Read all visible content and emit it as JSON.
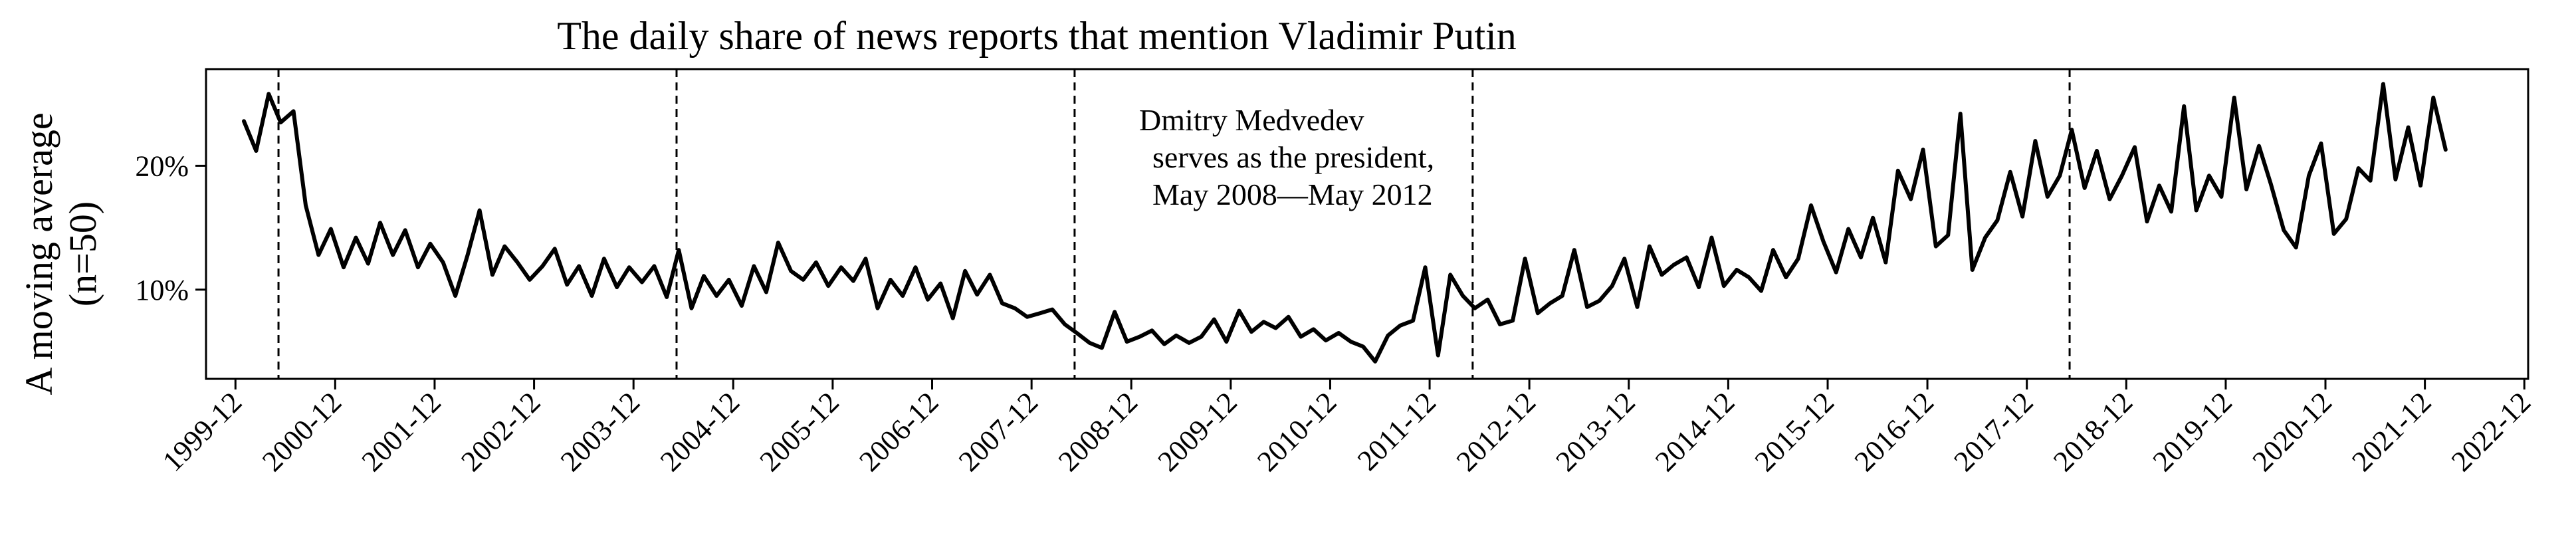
{
  "chart_data": {
    "type": "line",
    "title": "The daily share of news reports that mention Vladimir Putin",
    "xlabel": "",
    "ylabel_line1": "A moving average",
    "ylabel_line2": "(n=50)",
    "ylim": [
      0.028,
      0.278
    ],
    "xlim": [
      "1999-08-15",
      "2022-12-15"
    ],
    "x_ticks": [
      "1999-12",
      "2000-12",
      "2001-12",
      "2002-12",
      "2003-12",
      "2004-12",
      "2005-12",
      "2006-12",
      "2007-12",
      "2008-12",
      "2009-12",
      "2010-12",
      "2011-12",
      "2012-12",
      "2013-12",
      "2014-12",
      "2015-12",
      "2016-12",
      "2017-12",
      "2018-12",
      "2019-12",
      "2020-12",
      "2021-12",
      "2022-12"
    ],
    "y_ticks": [
      {
        "value": 0.1,
        "label": "10%"
      },
      {
        "value": 0.2,
        "label": "20%"
      }
    ],
    "vertical_lines": [
      "2000-05-07",
      "2004-05-07",
      "2008-05-07",
      "2012-05-07",
      "2018-05-07"
    ],
    "annotation": [
      "Dmitry Medvedev",
      "serves as the president,",
      "May 2008—May 2012"
    ],
    "grid": false,
    "series": [
      {
        "x": [
          "2000-01-01",
          "2000-02-15",
          "2000-04-01",
          "2000-05-15",
          "2000-07-01",
          "2000-08-15",
          "2000-10-01",
          "2000-11-15",
          "2001-01-01",
          "2001-02-15",
          "2001-04-01",
          "2001-05-15",
          "2001-07-01",
          "2001-08-15",
          "2001-10-01",
          "2001-11-15",
          "2002-01-01",
          "2002-02-15",
          "2002-04-01",
          "2002-05-15",
          "2002-07-01",
          "2002-08-15",
          "2002-10-01",
          "2002-11-15",
          "2003-01-01",
          "2003-02-15",
          "2003-04-01",
          "2003-05-15",
          "2003-07-01",
          "2003-08-15",
          "2003-10-01",
          "2003-11-15",
          "2004-01-01",
          "2004-02-15",
          "2004-04-01",
          "2004-05-15",
          "2004-07-01",
          "2004-08-15",
          "2004-10-01",
          "2004-11-15",
          "2005-01-01",
          "2005-02-15",
          "2005-04-01",
          "2005-05-15",
          "2005-07-01",
          "2005-08-15",
          "2005-10-01",
          "2005-11-15",
          "2006-01-01",
          "2006-02-15",
          "2006-04-01",
          "2006-05-15",
          "2006-07-01",
          "2006-08-15",
          "2006-10-01",
          "2006-11-15",
          "2007-01-01",
          "2007-02-15",
          "2007-04-01",
          "2007-05-15",
          "2007-07-01",
          "2007-08-15",
          "2007-10-01",
          "2007-11-15",
          "2008-01-01",
          "2008-02-15",
          "2008-04-01",
          "2008-05-15",
          "2008-07-01",
          "2008-08-15",
          "2008-10-01",
          "2008-11-15",
          "2009-01-01",
          "2009-02-15",
          "2009-04-01",
          "2009-05-15",
          "2009-07-01",
          "2009-08-15",
          "2009-10-01",
          "2009-11-15",
          "2010-01-01",
          "2010-02-15",
          "2010-04-01",
          "2010-05-15",
          "2010-07-01",
          "2010-08-15",
          "2010-10-01",
          "2010-11-15",
          "2011-01-01",
          "2011-02-15",
          "2011-04-01",
          "2011-05-15",
          "2011-07-01",
          "2011-08-15",
          "2011-10-01",
          "2011-11-15",
          "2012-01-01",
          "2012-02-15",
          "2012-04-01",
          "2012-05-15",
          "2012-07-01",
          "2012-08-15",
          "2012-10-01",
          "2012-11-15",
          "2013-01-01",
          "2013-02-15",
          "2013-04-01",
          "2013-05-15",
          "2013-07-01",
          "2013-08-15",
          "2013-10-01",
          "2013-11-15",
          "2014-01-01",
          "2014-02-15",
          "2014-04-01",
          "2014-05-15",
          "2014-07-01",
          "2014-08-15",
          "2014-10-01",
          "2014-11-15",
          "2015-01-01",
          "2015-02-15",
          "2015-04-01",
          "2015-05-15",
          "2015-07-01",
          "2015-08-15",
          "2015-10-01",
          "2015-11-15",
          "2016-01-01",
          "2016-02-15",
          "2016-04-01",
          "2016-05-15",
          "2016-07-01",
          "2016-08-15",
          "2016-10-01",
          "2016-11-15",
          "2017-01-01",
          "2017-02-15",
          "2017-04-01",
          "2017-05-15",
          "2017-07-01",
          "2017-08-15",
          "2017-10-01",
          "2017-11-15",
          "2018-01-01",
          "2018-02-15",
          "2018-04-01",
          "2018-05-15",
          "2018-07-01",
          "2018-08-15",
          "2018-10-01",
          "2018-11-15",
          "2019-01-01",
          "2019-02-15",
          "2019-04-01",
          "2019-05-15",
          "2019-07-01",
          "2019-08-15",
          "2019-10-01",
          "2019-11-15",
          "2020-01-01",
          "2020-02-15",
          "2020-04-01",
          "2020-05-15",
          "2020-07-01",
          "2020-08-15",
          "2020-10-01",
          "2020-11-15",
          "2021-01-01",
          "2021-02-15",
          "2021-04-01",
          "2021-05-15",
          "2021-07-01",
          "2021-08-15",
          "2021-10-01",
          "2021-11-15",
          "2022-01-01",
          "2022-02-15"
        ],
        "values": [
          0.236,
          0.212,
          0.258,
          0.235,
          0.244,
          0.168,
          0.128,
          0.149,
          0.118,
          0.142,
          0.121,
          0.154,
          0.128,
          0.148,
          0.118,
          0.137,
          0.122,
          0.095,
          0.128,
          0.164,
          0.112,
          0.135,
          0.122,
          0.108,
          0.119,
          0.133,
          0.104,
          0.119,
          0.095,
          0.125,
          0.102,
          0.118,
          0.106,
          0.119,
          0.094,
          0.132,
          0.085,
          0.111,
          0.095,
          0.108,
          0.087,
          0.119,
          0.098,
          0.138,
          0.115,
          0.108,
          0.122,
          0.103,
          0.118,
          0.107,
          0.125,
          0.085,
          0.108,
          0.095,
          0.118,
          0.092,
          0.105,
          0.077,
          0.115,
          0.096,
          0.112,
          0.089,
          0.085,
          0.078,
          0.081,
          0.084,
          0.072,
          0.065,
          0.057,
          0.053,
          0.082,
          0.058,
          0.062,
          0.067,
          0.056,
          0.063,
          0.057,
          0.062,
          0.076,
          0.058,
          0.083,
          0.066,
          0.074,
          0.069,
          0.078,
          0.062,
          0.068,
          0.059,
          0.065,
          0.058,
          0.054,
          0.042,
          0.063,
          0.071,
          0.075,
          0.118,
          0.047,
          0.112,
          0.095,
          0.085,
          0.092,
          0.072,
          0.075,
          0.125,
          0.081,
          0.089,
          0.095,
          0.132,
          0.086,
          0.091,
          0.103,
          0.125,
          0.086,
          0.135,
          0.112,
          0.12,
          0.126,
          0.102,
          0.142,
          0.103,
          0.116,
          0.11,
          0.099,
          0.132,
          0.11,
          0.125,
          0.168,
          0.139,
          0.114,
          0.149,
          0.126,
          0.158,
          0.122,
          0.196,
          0.173,
          0.213,
          0.135,
          0.144,
          0.242,
          0.116,
          0.142,
          0.156,
          0.195,
          0.159,
          0.22,
          0.175,
          0.192,
          0.229,
          0.182,
          0.212,
          0.173,
          0.192,
          0.215,
          0.155,
          0.184,
          0.163,
          0.248,
          0.164,
          0.192,
          0.175,
          0.255,
          0.181,
          0.216,
          0.185,
          0.148,
          0.134,
          0.192,
          0.218,
          0.145,
          0.157,
          0.198,
          0.188,
          0.266,
          0.189,
          0.231,
          0.184,
          0.255,
          0.213
        ]
      }
    ]
  }
}
